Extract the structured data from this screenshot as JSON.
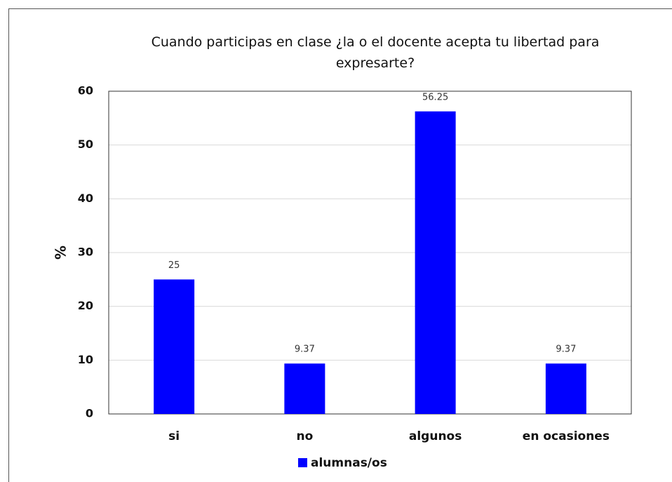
{
  "chart_data": {
    "type": "bar",
    "title": "Cuando participas en clase ¿la o el docente acepta tu libertad para expresarte?",
    "y_label": "%",
    "categories": [
      "si",
      "no",
      "algunos",
      "en ocasiones"
    ],
    "series": [
      {
        "name": "alumnas/os",
        "color": "#0000ff",
        "values": [
          25,
          9.37,
          56.25,
          9.37
        ]
      }
    ],
    "ylim": [
      0,
      60
    ],
    "yticks": [
      0,
      10,
      20,
      30,
      40,
      50,
      60
    ],
    "grid": true,
    "legend": "bottom"
  }
}
